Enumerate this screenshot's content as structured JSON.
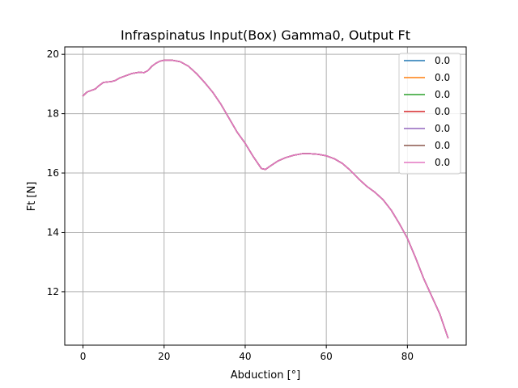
{
  "chart_data": {
    "type": "line",
    "title": "Infraspinatus Input(Box) Gamma0, Output Ft",
    "xlabel": "Abduction [°]",
    "ylabel": "Ft [N]",
    "xlim": [
      -4.5,
      94.5
    ],
    "ylim": [
      10.2,
      20.25
    ],
    "xticks": [
      0,
      20,
      40,
      60,
      80
    ],
    "yticks": [
      12,
      14,
      16,
      18,
      20
    ],
    "grid": true,
    "legend_position": "top-right",
    "series": [
      {
        "name": "0.0",
        "color": "#1f77b4"
      },
      {
        "name": "0.0",
        "color": "#ff7f0e"
      },
      {
        "name": "0.0",
        "color": "#2ca02c"
      },
      {
        "name": "0.0",
        "color": "#d62728"
      },
      {
        "name": "0.0",
        "color": "#9467bd"
      },
      {
        "name": "0.0",
        "color": "#8c564b"
      },
      {
        "name": "0.0",
        "color": "#e377c2"
      }
    ],
    "x": [
      0,
      1,
      2,
      3,
      4,
      5,
      6,
      7,
      8,
      9,
      10,
      12,
      14,
      15,
      16,
      17,
      18,
      19,
      20,
      22,
      24,
      26,
      28,
      30,
      32,
      34,
      36,
      38,
      40,
      42,
      44,
      45,
      46,
      48,
      50,
      52,
      54,
      56,
      58,
      60,
      62,
      64,
      66,
      68,
      70,
      72,
      74,
      76,
      78,
      80,
      82,
      84,
      86,
      88,
      90
    ],
    "y": [
      18.6,
      18.73,
      18.78,
      18.83,
      18.95,
      19.05,
      19.07,
      19.08,
      19.12,
      19.2,
      19.25,
      19.35,
      19.4,
      19.38,
      19.45,
      19.6,
      19.7,
      19.77,
      19.8,
      19.8,
      19.75,
      19.6,
      19.35,
      19.05,
      18.72,
      18.32,
      17.85,
      17.38,
      17.0,
      16.55,
      16.15,
      16.12,
      16.22,
      16.4,
      16.52,
      16.6,
      16.65,
      16.65,
      16.63,
      16.58,
      16.48,
      16.32,
      16.08,
      15.8,
      15.55,
      15.35,
      15.1,
      14.75,
      14.3,
      13.8,
      13.15,
      12.45,
      11.85,
      11.25,
      10.45
    ]
  }
}
